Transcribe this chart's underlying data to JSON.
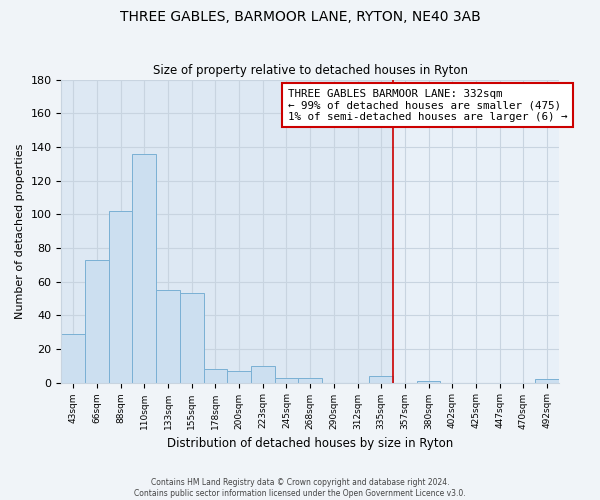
{
  "title": "THREE GABLES, BARMOOR LANE, RYTON, NE40 3AB",
  "subtitle": "Size of property relative to detached houses in Ryton",
  "xlabel": "Distribution of detached houses by size in Ryton",
  "ylabel": "Number of detached properties",
  "bar_labels": [
    "43sqm",
    "66sqm",
    "88sqm",
    "110sqm",
    "133sqm",
    "155sqm",
    "178sqm",
    "200sqm",
    "223sqm",
    "245sqm",
    "268sqm",
    "290sqm",
    "312sqm",
    "335sqm",
    "357sqm",
    "380sqm",
    "402sqm",
    "425sqm",
    "447sqm",
    "470sqm",
    "492sqm"
  ],
  "bar_values": [
    29,
    73,
    102,
    136,
    55,
    53,
    8,
    7,
    10,
    3,
    3,
    0,
    0,
    4,
    0,
    1,
    0,
    0,
    0,
    0,
    2
  ],
  "bar_color": "#ccdff0",
  "bar_edge_color": "#7ab0d4",
  "vline_x": 13.5,
  "vline_color": "#cc0000",
  "annotation_title": "THREE GABLES BARMOOR LANE: 332sqm",
  "annotation_line1": "← 99% of detached houses are smaller (475)",
  "annotation_line2": "1% of semi-detached houses are larger (6) →",
  "ylim": [
    0,
    180
  ],
  "yticks": [
    0,
    20,
    40,
    60,
    80,
    100,
    120,
    140,
    160,
    180
  ],
  "footer1": "Contains HM Land Registry data © Crown copyright and database right 2024.",
  "footer2": "Contains public sector information licensed under the Open Government Licence v3.0.",
  "bg_color": "#f0f4f8",
  "plot_bg_color_left": "#dde8f3",
  "plot_bg_color_right": "#e8f0f8",
  "grid_color": "#c8d4e0"
}
